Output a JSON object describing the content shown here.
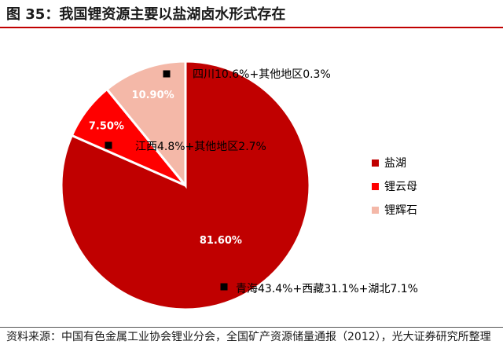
{
  "title": "图 35：我国锂资源主要以盐湖卤水形式存在",
  "chart_data": {
    "type": "pie",
    "slices": [
      {
        "label": "盐湖",
        "value": 81.6,
        "value_label": "81.60%",
        "color": "#c00000",
        "annotation": "青海43.4%+西藏31.1%+湖北7.1%"
      },
      {
        "label": "锂云母",
        "value": 7.5,
        "value_label": "7.50%",
        "color": "#ff0000",
        "annotation": "江西4.8%+其他地区2.7%"
      },
      {
        "label": "锂辉石",
        "value": 10.9,
        "value_label": "10.90%",
        "color": "#f4b8a8",
        "annotation": "四川10.6%+其他地区0.3%"
      }
    ],
    "legend_position": "right",
    "start_angle": "12 o'clock",
    "direction": "clockwise"
  },
  "source": "资料来源：中国有色金属工业协会锂业分会，全国矿产资源储量通报（2012），光大证券研究所整理"
}
